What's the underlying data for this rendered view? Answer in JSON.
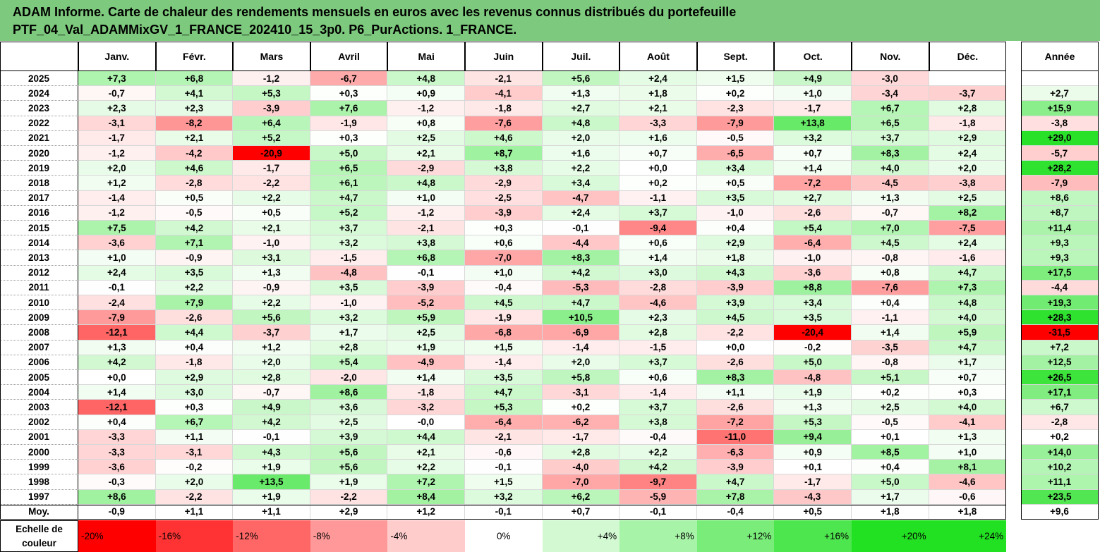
{
  "title": {
    "line1": "ADAM Informe. Carte de chaleur des rendements mensuels en euros avec les revenus connus distribués du portefeuille",
    "line2": "PTF_04_Val_ADAMMixGV_1_FRANCE_202410_15_3p0. P6_PurActions. 1_FRANCE."
  },
  "colors": {
    "header_bg": "#7dc97d",
    "negative_max": "#ff0000",
    "neutral": "#ffffff",
    "positive_max": "#22e022"
  },
  "chart_data": {
    "type": "heatmap",
    "columns": [
      "Janv.",
      "Févr.",
      "Mars",
      "Avril",
      "Mai",
      "Juin",
      "Juil.",
      "Août",
      "Sept.",
      "Oct.",
      "Nov.",
      "Déc."
    ],
    "annual_column": "Année",
    "rows": [
      {
        "label": "2025",
        "values": [
          "+7,3",
          "+6,8",
          "-1,2",
          "-6,7",
          "+4,8",
          "-2,1",
          "+5,6",
          "+2,4",
          "+1,5",
          "+4,9",
          "-3,0",
          ""
        ],
        "annual": ""
      },
      {
        "label": "2024",
        "values": [
          "-0,7",
          "+4,1",
          "+5,3",
          "+0,3",
          "+0,9",
          "-4,1",
          "+1,3",
          "+1,8",
          "+0,2",
          "+1,0",
          "-3,4",
          "-3,7"
        ],
        "annual": "+2,7"
      },
      {
        "label": "2023",
        "values": [
          "+2,3",
          "+2,3",
          "-3,9",
          "+7,6",
          "-1,2",
          "-1,8",
          "+2,7",
          "+2,1",
          "-2,3",
          "-1,7",
          "+6,7",
          "+2,8"
        ],
        "annual": "+15,9"
      },
      {
        "label": "2022",
        "values": [
          "-3,1",
          "-8,2",
          "+6,4",
          "-1,9",
          "+0,8",
          "-7,6",
          "+4,8",
          "-3,3",
          "-7,9",
          "+13,8",
          "+6,5",
          "-1,8"
        ],
        "annual": "-3,8"
      },
      {
        "label": "2021",
        "values": [
          "-1,7",
          "+2,1",
          "+5,2",
          "+0,3",
          "+2,5",
          "+4,6",
          "+2,0",
          "+1,6",
          "-0,5",
          "+3,2",
          "+3,7",
          "+2,9"
        ],
        "annual": "+29,0"
      },
      {
        "label": "2020",
        "values": [
          "-1,2",
          "-4,2",
          "-20,9",
          "+5,0",
          "+2,1",
          "+8,7",
          "+1,6",
          "+0,7",
          "-6,5",
          "+0,7",
          "+8,3",
          "+2,4"
        ],
        "annual": "-5,7"
      },
      {
        "label": "2019",
        "values": [
          "+2,0",
          "+4,6",
          "-1,7",
          "+6,5",
          "-2,9",
          "+3,8",
          "+2,2",
          "+0,0",
          "+3,4",
          "+1,4",
          "+4,0",
          "+2,0"
        ],
        "annual": "+28,2"
      },
      {
        "label": "2018",
        "values": [
          "+1,2",
          "-2,8",
          "-2,2",
          "+6,1",
          "+4,8",
          "-2,9",
          "+3,4",
          "+0,2",
          "+0,5",
          "-7,2",
          "-4,5",
          "-3,8"
        ],
        "annual": "-7,9"
      },
      {
        "label": "2017",
        "values": [
          "-1,4",
          "+0,5",
          "+2,2",
          "+4,7",
          "+1,0",
          "-2,5",
          "-4,7",
          "-1,1",
          "+3,5",
          "+2,7",
          "+1,3",
          "+2,5"
        ],
        "annual": "+8,6"
      },
      {
        "label": "2016",
        "values": [
          "-1,2",
          "-0,5",
          "+0,5",
          "+5,2",
          "-1,2",
          "-3,9",
          "+2,4",
          "+3,7",
          "-1,0",
          "-2,6",
          "-0,7",
          "+8,2"
        ],
        "annual": "+8,7"
      },
      {
        "label": "2015",
        "values": [
          "+7,5",
          "+4,2",
          "+2,1",
          "+3,7",
          "-2,1",
          "+0,3",
          "-0,1",
          "-9,4",
          "+0,4",
          "+5,4",
          "+7,0",
          "-7,5"
        ],
        "annual": "+11,4"
      },
      {
        "label": "2014",
        "values": [
          "-3,6",
          "+7,1",
          "-1,0",
          "+3,2",
          "+3,8",
          "+0,6",
          "-4,4",
          "+0,6",
          "+2,9",
          "-6,4",
          "+4,5",
          "+2,4"
        ],
        "annual": "+9,3"
      },
      {
        "label": "2013",
        "values": [
          "+1,0",
          "-0,9",
          "+3,1",
          "-1,5",
          "+6,8",
          "-7,0",
          "+8,3",
          "+1,4",
          "+1,8",
          "-1,0",
          "-0,8",
          "-1,6"
        ],
        "annual": "+9,3"
      },
      {
        "label": "2012",
        "values": [
          "+2,4",
          "+3,5",
          "+1,3",
          "-4,8",
          "-0,1",
          "+1,0",
          "+4,2",
          "+3,0",
          "+4,3",
          "-3,6",
          "+0,8",
          "+4,7"
        ],
        "annual": "+17,5"
      },
      {
        "label": "2011",
        "values": [
          "-0,1",
          "+2,2",
          "-0,9",
          "+3,5",
          "-3,9",
          "-0,4",
          "-5,3",
          "-2,8",
          "-3,9",
          "+8,8",
          "-7,6",
          "+7,3"
        ],
        "annual": "-4,4"
      },
      {
        "label": "2010",
        "values": [
          "-2,4",
          "+7,9",
          "+2,2",
          "-1,0",
          "-5,2",
          "+4,5",
          "+4,7",
          "-4,6",
          "+3,9",
          "+3,4",
          "+0,4",
          "+4,8"
        ],
        "annual": "+19,3"
      },
      {
        "label": "2009",
        "values": [
          "-7,9",
          "-2,6",
          "+5,6",
          "+3,2",
          "+5,9",
          "-1,9",
          "+10,5",
          "+2,3",
          "+4,5",
          "+3,5",
          "-1,1",
          "+4,0"
        ],
        "annual": "+28,3"
      },
      {
        "label": "2008",
        "values": [
          "-12,1",
          "+4,4",
          "-3,7",
          "+1,7",
          "+2,5",
          "-6,8",
          "-6,9",
          "+2,8",
          "-2,2",
          "-20,4",
          "+1,4",
          "+5,9"
        ],
        "annual": "-31,5"
      },
      {
        "label": "2007",
        "values": [
          "+1,3",
          "+0,4",
          "+1,2",
          "+2,8",
          "+1,9",
          "+1,5",
          "-1,4",
          "-1,5",
          "+0,0",
          "-0,2",
          "-3,5",
          "+4,7"
        ],
        "annual": "+7,2"
      },
      {
        "label": "2006",
        "values": [
          "+4,2",
          "-1,8",
          "+2,0",
          "+5,4",
          "-4,9",
          "-1,4",
          "+2,0",
          "+3,7",
          "-2,6",
          "+5,0",
          "-0,8",
          "+1,7"
        ],
        "annual": "+12,5"
      },
      {
        "label": "2005",
        "values": [
          "+0,0",
          "+2,9",
          "+2,8",
          "-2,0",
          "+1,4",
          "+3,5",
          "+5,8",
          "+0,6",
          "+8,3",
          "-4,8",
          "+5,1",
          "+0,7"
        ],
        "annual": "+26,5"
      },
      {
        "label": "2004",
        "values": [
          "+1,4",
          "+3,0",
          "-0,7",
          "+8,6",
          "-1,8",
          "+4,7",
          "-3,1",
          "-1,4",
          "+1,1",
          "+1,9",
          "+0,2",
          "+0,3"
        ],
        "annual": "+17,1"
      },
      {
        "label": "2003",
        "values": [
          "-12,1",
          "+0,3",
          "+4,9",
          "+3,6",
          "-3,2",
          "+5,3",
          "+0,2",
          "+3,7",
          "-2,6",
          "+1,3",
          "+2,5",
          "+4,0"
        ],
        "annual": "+6,7"
      },
      {
        "label": "2002",
        "values": [
          "+0,4",
          "+6,7",
          "+4,2",
          "+2,5",
          "-0,0",
          "-6,4",
          "-6,2",
          "+3,8",
          "-7,2",
          "+5,3",
          "-0,5",
          "-4,1"
        ],
        "annual": "-2,8"
      },
      {
        "label": "2001",
        "values": [
          "-3,3",
          "+1,1",
          "-0,1",
          "+3,9",
          "+4,4",
          "-2,1",
          "-1,7",
          "-0,4",
          "-11,0",
          "+9,4",
          "+0,1",
          "+1,3"
        ],
        "annual": "+0,2"
      },
      {
        "label": "2000",
        "values": [
          "-3,3",
          "-3,1",
          "+4,3",
          "+5,6",
          "+2,1",
          "-0,6",
          "+2,8",
          "+2,2",
          "-6,3",
          "+0,9",
          "+8,5",
          "+1,0"
        ],
        "annual": "+14,0"
      },
      {
        "label": "1999",
        "values": [
          "-3,6",
          "-0,2",
          "+1,9",
          "+5,6",
          "+2,2",
          "-0,1",
          "-4,0",
          "+4,2",
          "-3,9",
          "+0,1",
          "+0,4",
          "+8,1"
        ],
        "annual": "+10,2"
      },
      {
        "label": "1998",
        "values": [
          "-0,3",
          "+2,0",
          "+13,5",
          "+1,9",
          "+7,2",
          "+1,5",
          "-7,0",
          "-9,7",
          "+4,7",
          "-1,7",
          "+5,0",
          "-4,6"
        ],
        "annual": "+11,1"
      },
      {
        "label": "1997",
        "values": [
          "+8,6",
          "-2,2",
          "+1,9",
          "-2,2",
          "+8,4",
          "+3,2",
          "+6,2",
          "-5,9",
          "+7,8",
          "-4,3",
          "+1,7",
          "-0,6"
        ],
        "annual": "+23,5"
      }
    ],
    "average_row": {
      "label": "Moy.",
      "values": [
        "-0,9",
        "+1,1",
        "+1,1",
        "+2,9",
        "+1,2",
        "-0,1",
        "+0,7",
        "-0,1",
        "-0,4",
        "+0,5",
        "+1,8",
        "+1,8"
      ],
      "annual": "+9,6"
    },
    "color_scale": {
      "label": "Echelle de couleur",
      "stops": [
        "-20%",
        "-16%",
        "-12%",
        "-8%",
        "-4%",
        "0%",
        "+4%",
        "+8%",
        "+12%",
        "+16%",
        "+20%",
        "+24%"
      ]
    }
  }
}
